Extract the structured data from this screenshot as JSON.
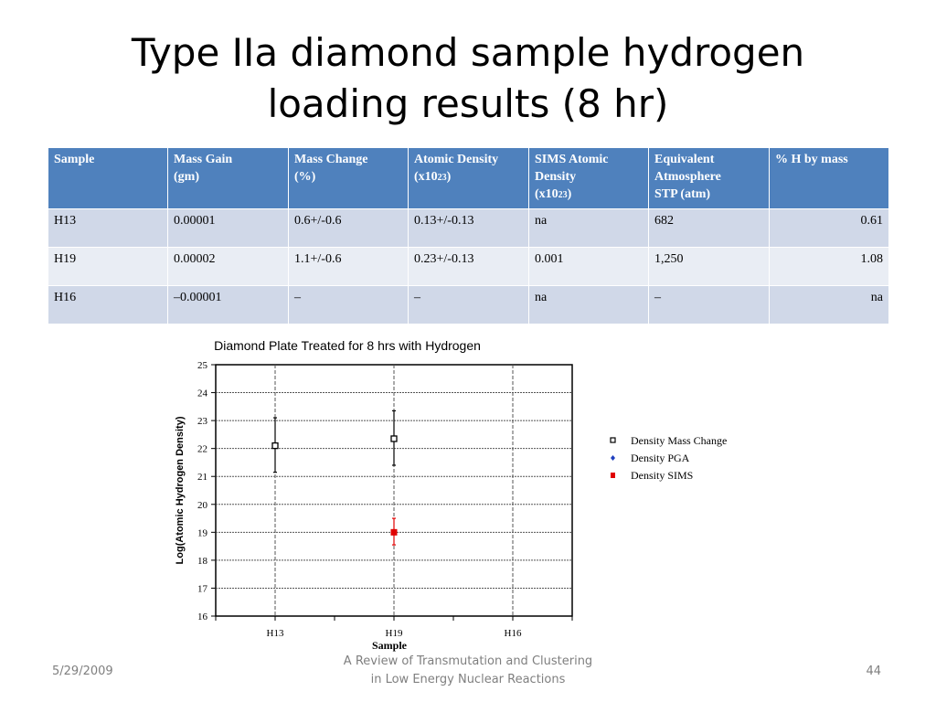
{
  "slide": {
    "title_line1": "Type IIa diamond sample hydrogen",
    "title_line2": "loading results (8 hr)",
    "footer_date": "5/29/2009",
    "footer_center_line1": "A Review of Transmutation and Clustering",
    "footer_center_line2": "in Low Energy Nuclear Reactions",
    "page_number": "44"
  },
  "table": {
    "headers": {
      "sample": "Sample",
      "mass_gain_1": "Mass Gain",
      "mass_gain_2": "(gm)",
      "mass_change_1": "Mass Change",
      "mass_change_2": "(%)",
      "atomic_density_1": "Atomic Density",
      "atomic_density_2": "(x10",
      "atomic_density_exp": "23",
      "atomic_density_close": ")",
      "sims_1": "SIMS Atomic",
      "sims_2": "Density",
      "sims_3": "(x10",
      "sims_exp": "23",
      "sims_close": ")",
      "equiv_1": "Equivalent",
      "equiv_2": "Atmosphere",
      "equiv_3": "STP (atm)",
      "h_by_mass": "% H by mass"
    },
    "rows": [
      [
        "H13",
        "0.00001",
        "0.6+/-0.6",
        "0.13+/-0.13",
        "na",
        "682",
        "0.61"
      ],
      [
        "H19",
        "0.00002",
        "1.1+/-0.6",
        "0.23+/-0.13",
        "0.001",
        "1,250",
        "1.08"
      ],
      [
        "H16",
        "–0.00001",
        "–",
        "–",
        "na",
        "–",
        "na"
      ]
    ]
  },
  "chart_data": {
    "type": "scatter",
    "title": "Diamond Plate Treated for 8 hrs with Hydrogen",
    "xlabel": "Sample",
    "ylabel": "Log(Atomic Hydrogen Density)",
    "categories": [
      "H13",
      "H19",
      "H16"
    ],
    "ylim": [
      16,
      25
    ],
    "yticks": [
      "16",
      "17",
      "18",
      "19",
      "20",
      "21",
      "22",
      "23",
      "24",
      "25"
    ],
    "grid": true,
    "legend_position": "right",
    "series": [
      {
        "name": "Density Mass Change",
        "marker": "hollow-square",
        "color": "#000000",
        "points": [
          {
            "category": "H13",
            "y": 22.1,
            "ylow": 21.15,
            "yhigh": 23.1
          },
          {
            "category": "H19",
            "y": 22.35,
            "ylow": 21.4,
            "yhigh": 23.35
          }
        ]
      },
      {
        "name": "Density PGA",
        "marker": "diamond",
        "color": "#1f3fbf",
        "points": []
      },
      {
        "name": "Density SIMS",
        "marker": "filled-square",
        "color": "#e00000",
        "points": [
          {
            "category": "H19",
            "y": 19.0,
            "ylow": 18.55,
            "yhigh": 19.5
          }
        ]
      }
    ]
  }
}
